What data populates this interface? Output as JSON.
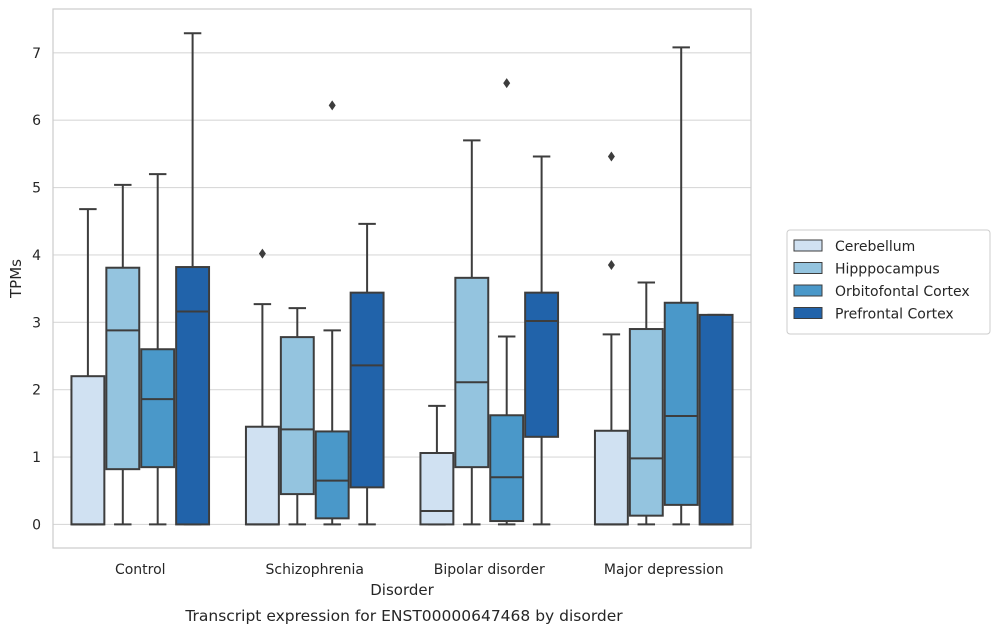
{
  "caption": "Transcript expression for ENST00000647468 by disorder",
  "chart_data": {
    "type": "box",
    "xlabel": "Disorder",
    "ylabel": "TPMs",
    "ylim": [
      -0.35,
      7.65
    ],
    "yticks": [
      "0",
      "1",
      "2",
      "3",
      "4",
      "5",
      "6",
      "7"
    ],
    "grid": true,
    "legend_position": "right",
    "categories": [
      "Control",
      "Schizophrenia",
      "Bipolar disorder",
      "Major depression"
    ],
    "series": [
      {
        "name": "Cerebellum",
        "color": "#d0e1f2",
        "boxes": [
          {
            "whisker_low": 0,
            "q1": 0,
            "median": 0,
            "q3": 2.2,
            "whisker_high": 4.68,
            "outliers": []
          },
          {
            "whisker_low": 0,
            "q1": 0,
            "median": 0,
            "q3": 1.45,
            "whisker_high": 3.27,
            "outliers": [
              4.02
            ]
          },
          {
            "whisker_low": 0,
            "q1": 0,
            "median": 0.2,
            "q3": 1.06,
            "whisker_high": 1.76,
            "outliers": []
          },
          {
            "whisker_low": 0,
            "q1": 0,
            "median": 0,
            "q3": 1.39,
            "whisker_high": 2.82,
            "outliers": [
              3.85,
              5.46
            ]
          }
        ]
      },
      {
        "name": "Hipppocampus",
        "color": "#94c4df",
        "boxes": [
          {
            "whisker_low": 0,
            "q1": 0.82,
            "median": 2.88,
            "q3": 3.81,
            "whisker_high": 5.04,
            "outliers": []
          },
          {
            "whisker_low": 0,
            "q1": 0.45,
            "median": 1.41,
            "q3": 2.78,
            "whisker_high": 3.21,
            "outliers": []
          },
          {
            "whisker_low": 0,
            "q1": 0.85,
            "median": 2.11,
            "q3": 3.66,
            "whisker_high": 5.7,
            "outliers": []
          },
          {
            "whisker_low": 0,
            "q1": 0.13,
            "median": 0.98,
            "q3": 2.9,
            "whisker_high": 3.59,
            "outliers": []
          }
        ]
      },
      {
        "name": "Orbitofontal Cortex",
        "color": "#4a98c9",
        "boxes": [
          {
            "whisker_low": 0,
            "q1": 0.85,
            "median": 1.86,
            "q3": 2.6,
            "whisker_high": 5.2,
            "outliers": []
          },
          {
            "whisker_low": 0,
            "q1": 0.09,
            "median": 0.65,
            "q3": 1.38,
            "whisker_high": 2.88,
            "outliers": [
              6.22
            ]
          },
          {
            "whisker_low": 0,
            "q1": 0.05,
            "median": 0.7,
            "q3": 1.62,
            "whisker_high": 2.79,
            "outliers": [
              6.55
            ]
          },
          {
            "whisker_low": 0,
            "q1": 0.29,
            "median": 1.61,
            "q3": 3.29,
            "whisker_high": 7.08,
            "outliers": []
          }
        ]
      },
      {
        "name": "Prefrontal Cortex",
        "color": "#2163aa",
        "boxes": [
          {
            "whisker_low": 0,
            "q1": 0,
            "median": 3.16,
            "q3": 3.82,
            "whisker_high": 7.29,
            "outliers": []
          },
          {
            "whisker_low": 0,
            "q1": 0.55,
            "median": 2.36,
            "q3": 3.44,
            "whisker_high": 4.46,
            "outliers": []
          },
          {
            "whisker_low": 0,
            "q1": 1.3,
            "median": 3.02,
            "q3": 3.44,
            "whisker_high": 5.46,
            "outliers": []
          },
          {
            "whisker_low": 0,
            "q1": 0,
            "median": 0,
            "q3": 3.11,
            "whisker_high": 3.11,
            "outliers": []
          }
        ]
      }
    ]
  }
}
